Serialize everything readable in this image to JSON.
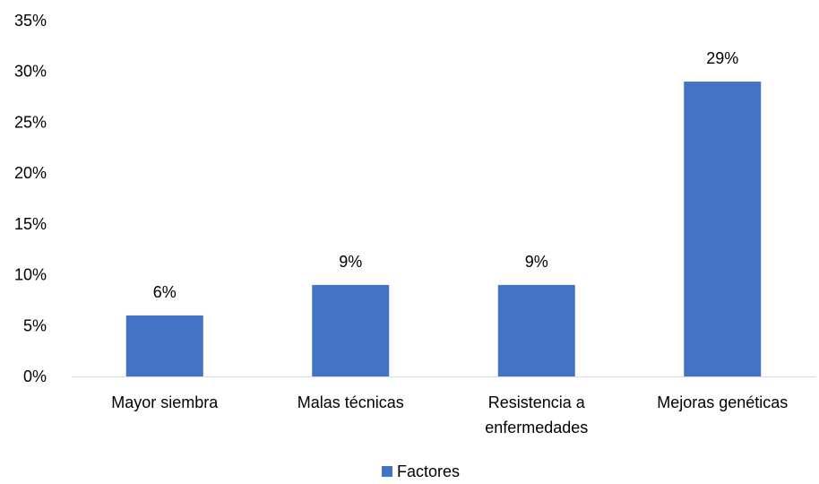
{
  "chart_data": {
    "type": "bar",
    "categories": [
      [
        "Mayor siembra"
      ],
      [
        "Malas técnicas"
      ],
      [
        "Resistencia a",
        "enfermedades"
      ],
      [
        "Mejoras genéticas"
      ]
    ],
    "series": [
      {
        "name": "Factores",
        "values": [
          6,
          9,
          9,
          29
        ],
        "color": "#4472C4"
      }
    ],
    "data_labels": [
      "6%",
      "9%",
      "9%",
      "29%"
    ],
    "ylim": [
      0,
      35
    ],
    "yticks": [
      0,
      5,
      10,
      15,
      20,
      25,
      30,
      35
    ],
    "ytick_labels": [
      "0%",
      "5%",
      "10%",
      "15%",
      "20%",
      "25%",
      "30%",
      "35%"
    ],
    "grid": false,
    "legend_position": "bottom",
    "title": "",
    "xlabel": "",
    "ylabel": ""
  }
}
